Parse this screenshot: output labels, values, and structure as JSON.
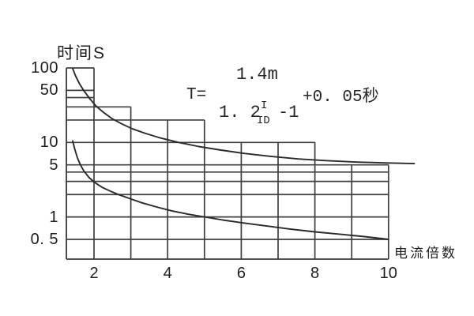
{
  "background": "#ffffff",
  "colors": {
    "grid": "#3f3f3f",
    "axis": "#3a3a3a",
    "curve": "#2a2a2a",
    "text": "#1e1e1e"
  },
  "axis_titles": {
    "y": "时间S",
    "x": "电流倍数"
  },
  "formula": {
    "lhs": "T=",
    "numerator": "1.4m",
    "denominator_base": "1. 2",
    "exponent_numerator": "I",
    "exponent_denominator": "ID",
    "denominator_tail": "-1",
    "tail": "+0. 05秒"
  },
  "chart_data": {
    "type": "line",
    "title": "",
    "xlabel": "电流倍数",
    "ylabel": "时间S",
    "x_scale": "linear",
    "y_scale": "log",
    "xlim": [
      1.25,
      10
    ],
    "ylim": [
      0.27,
      100
    ],
    "legend": "none",
    "grid": "staircase-partial",
    "y_ticks": [
      {
        "value": 100,
        "label": "100"
      },
      {
        "value": 50,
        "label": "50"
      },
      {
        "value": 10,
        "label": "10"
      },
      {
        "value": 5,
        "label": "5"
      },
      {
        "value": 1,
        "label": "1"
      },
      {
        "value": 0.5,
        "label": "0. 5"
      }
    ],
    "x_ticks": [
      {
        "value": 2,
        "label": "2"
      },
      {
        "value": 4,
        "label": "4"
      },
      {
        "value": 6,
        "label": "6"
      },
      {
        "value": 8,
        "label": "8"
      },
      {
        "value": 10,
        "label": "10"
      }
    ],
    "y_gridlines": [
      {
        "t": 100,
        "to_x": 2
      },
      {
        "t": 50,
        "to_x": 2
      },
      {
        "t": 40,
        "to_x": 2
      },
      {
        "t": 30,
        "to_x": 3
      },
      {
        "t": 20,
        "to_x": 5
      },
      {
        "t": 10,
        "to_x": 8
      },
      {
        "t": 5,
        "to_x": 10
      },
      {
        "t": 4,
        "to_x": 10
      },
      {
        "t": 3,
        "to_x": 10
      },
      {
        "t": 2,
        "to_x": 10
      },
      {
        "t": 1,
        "to_x": 10
      },
      {
        "t": 0.5,
        "to_x": 10
      }
    ],
    "x_gridlines": [
      {
        "x": 2,
        "to_t": 100
      },
      {
        "x": 3,
        "to_t": 30
      },
      {
        "x": 4,
        "to_t": 20
      },
      {
        "x": 5,
        "to_t": 20
      },
      {
        "x": 6,
        "to_t": 10
      },
      {
        "x": 7,
        "to_t": 10
      },
      {
        "x": 8,
        "to_t": 10
      },
      {
        "x": 9,
        "to_t": 5
      },
      {
        "x": 10,
        "to_t": 5
      }
    ],
    "series": [
      {
        "name": "upper-curve",
        "points": [
          [
            1.42,
            98
          ],
          [
            1.5,
            78
          ],
          [
            1.6,
            62
          ],
          [
            1.73,
            49
          ],
          [
            1.88,
            39
          ],
          [
            2.05,
            31
          ],
          [
            2.25,
            25.5
          ],
          [
            2.48,
            21
          ],
          [
            2.75,
            17.8
          ],
          [
            3.05,
            15.2
          ],
          [
            3.4,
            13.2
          ],
          [
            3.8,
            11.5
          ],
          [
            4.3,
            10.0
          ],
          [
            4.85,
            8.8
          ],
          [
            5.45,
            7.9
          ],
          [
            6.1,
            7.1
          ],
          [
            6.8,
            6.5
          ],
          [
            7.55,
            6.0
          ],
          [
            8.3,
            5.7
          ],
          [
            9.15,
            5.45
          ],
          [
            10.0,
            5.3
          ],
          [
            10.7,
            5.2
          ]
        ]
      },
      {
        "name": "lower-curve",
        "points": [
          [
            1.42,
            10.5
          ],
          [
            1.48,
            8.0
          ],
          [
            1.55,
            6.2
          ],
          [
            1.63,
            5.0
          ],
          [
            1.73,
            4.1
          ],
          [
            1.86,
            3.4
          ],
          [
            2.02,
            2.9
          ],
          [
            2.22,
            2.5
          ],
          [
            2.46,
            2.2
          ],
          [
            2.66,
            2.0
          ],
          [
            2.95,
            1.78
          ],
          [
            3.3,
            1.55
          ],
          [
            3.7,
            1.36
          ],
          [
            4.1,
            1.21
          ],
          [
            4.55,
            1.09
          ],
          [
            5.0,
            1.0
          ],
          [
            5.5,
            0.91
          ],
          [
            6.05,
            0.83
          ],
          [
            6.65,
            0.76
          ],
          [
            7.3,
            0.69
          ],
          [
            8.0,
            0.63
          ],
          [
            8.7,
            0.585
          ],
          [
            9.35,
            0.545
          ],
          [
            10.0,
            0.5
          ]
        ]
      }
    ]
  }
}
